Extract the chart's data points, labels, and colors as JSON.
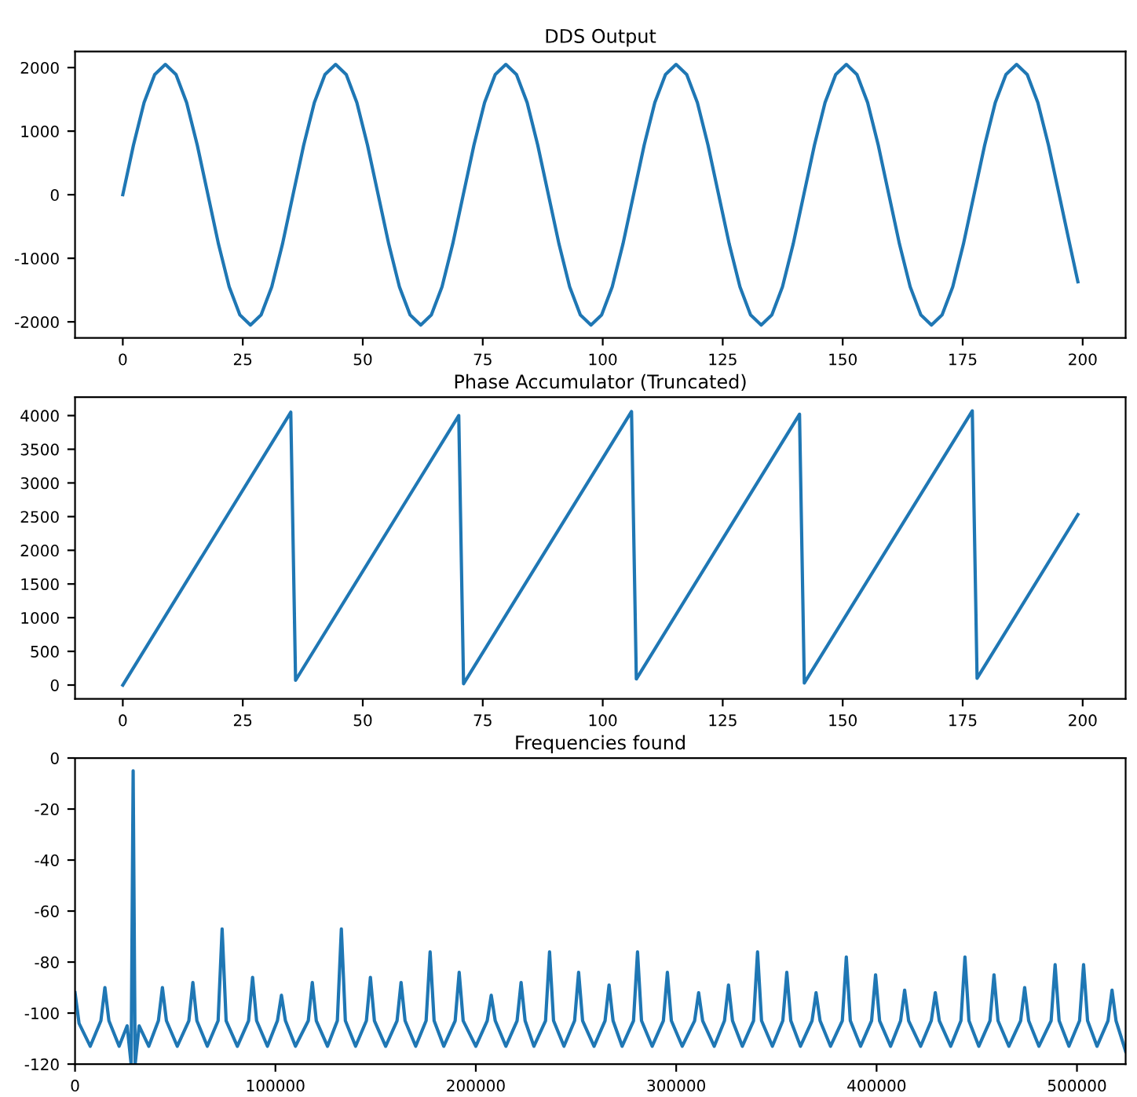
{
  "chart_data": [
    {
      "type": "line",
      "title": "DDS Output",
      "xlim": [
        -9.95,
        208.95
      ],
      "ylim": [
        -2252,
        2252
      ],
      "xticks": [
        0,
        25,
        50,
        75,
        100,
        125,
        150,
        175,
        200
      ],
      "yticks": [
        -2000,
        -1000,
        0,
        1000,
        2000
      ],
      "grid": false,
      "series": [
        {
          "color": "#1f77b4",
          "x": [
            0,
            2.22,
            4.43,
            6.65,
            8.87,
            11.09,
            13.3,
            15.52,
            17.74,
            19.95,
            22.17,
            24.39,
            26.6,
            28.82,
            31.04,
            33.26,
            35.47,
            37.69,
            39.91,
            42.12,
            44.34,
            46.56,
            48.77,
            50.99,
            53.21,
            55.43,
            57.64,
            59.86,
            62.08,
            64.29,
            66.51,
            68.73,
            70.94,
            73.16,
            75.38,
            77.6,
            79.81,
            82.03,
            84.25,
            86.46,
            88.68,
            90.9,
            93.11,
            95.33,
            97.55,
            99.77,
            101.98,
            104.2,
            106.42,
            108.63,
            110.85,
            113.07,
            115.28,
            117.5,
            119.72,
            121.94,
            124.15,
            126.37,
            128.59,
            130.8,
            133.02,
            135.24,
            137.45,
            139.67,
            141.89,
            144.11,
            146.32,
            148.54,
            150.76,
            152.97,
            155.19,
            157.41,
            159.62,
            161.84,
            164.06,
            166.28,
            168.49,
            170.71,
            172.93,
            175.14,
            177.36,
            179.58,
            181.79,
            184.01,
            186.23,
            188.45,
            190.66,
            192.88,
            195.1,
            197.31,
            199
          ],
          "values": [
            0,
            780,
            1450,
            1890,
            2050,
            1890,
            1450,
            780,
            0,
            -780,
            -1450,
            -1890,
            -2050,
            -1890,
            -1450,
            -780,
            0,
            780,
            1450,
            1890,
            2050,
            1890,
            1450,
            780,
            0,
            -780,
            -1450,
            -1890,
            -2050,
            -1890,
            -1450,
            -780,
            0,
            780,
            1450,
            1890,
            2050,
            1890,
            1450,
            780,
            0,
            -780,
            -1450,
            -1890,
            -2050,
            -1890,
            -1450,
            -780,
            0,
            780,
            1450,
            1890,
            2050,
            1890,
            1450,
            780,
            0,
            -780,
            -1450,
            -1890,
            -2050,
            -1890,
            -1450,
            -780,
            0,
            780,
            1450,
            1890,
            2050,
            1890,
            1450,
            780,
            0,
            -780,
            -1450,
            -1890,
            -2050,
            -1890,
            -1450,
            -780,
            0,
            780,
            1450,
            1890,
            2050,
            1890,
            1450,
            780,
            0,
            -780,
            -1370
          ]
        }
      ]
    },
    {
      "type": "line",
      "title": "Phase Accumulator (Truncated)",
      "xlim": [
        -9.95,
        208.95
      ],
      "ylim": [
        -204,
        4274
      ],
      "xticks": [
        0,
        25,
        50,
        75,
        100,
        125,
        150,
        175,
        200
      ],
      "yticks": [
        0,
        500,
        1000,
        1500,
        2000,
        2500,
        3000,
        3500,
        4000
      ],
      "grid": false,
      "series": [
        {
          "color": "#1f77b4",
          "x": [
            0,
            35,
            36,
            70,
            71,
            106,
            107,
            141,
            142,
            177,
            178,
            199
          ],
          "values": [
            0,
            4050,
            70,
            4000,
            20,
            4060,
            90,
            4020,
            30,
            4070,
            100,
            2530
          ]
        }
      ]
    },
    {
      "type": "line",
      "title": "Frequencies found",
      "xlim": [
        0,
        524288
      ],
      "ylim": [
        -120,
        0
      ],
      "xticks": [
        0,
        100000,
        200000,
        300000,
        400000,
        500000
      ],
      "yticks": [
        -120,
        -100,
        -80,
        -60,
        -40,
        -20,
        0
      ],
      "grid": false,
      "series": [
        {
          "color": "#1f77b4",
          "x": [
            0,
            2000,
            7600,
            12900,
            14900,
            16900,
            22000,
            26000,
            28000,
            29000,
            30000,
            32000,
            36800,
            41600,
            43600,
            45600,
            51000,
            56800,
            58800,
            60800,
            66000,
            71400,
            73400,
            75400,
            81000,
            86600,
            88600,
            90600,
            96000,
            101000,
            103000,
            105000,
            110000,
            116400,
            118400,
            120400,
            126000,
            130900,
            132900,
            134900,
            140000,
            145400,
            147400,
            149400,
            155000,
            160700,
            162700,
            164700,
            170000,
            175200,
            177200,
            179200,
            184000,
            189700,
            191700,
            193700,
            200000,
            205700,
            207700,
            209700,
            215000,
            220600,
            222600,
            224600,
            229000,
            234800,
            236800,
            238800,
            244000,
            249300,
            251300,
            253300,
            259000,
            264500,
            266500,
            268500,
            273000,
            278700,
            280700,
            282700,
            288000,
            293600,
            295600,
            297600,
            303000,
            309200,
            311200,
            313200,
            319000,
            324100,
            326100,
            328100,
            333000,
            338600,
            340600,
            342600,
            348000,
            353200,
            355200,
            357200,
            362000,
            367800,
            369800,
            371800,
            377000,
            382900,
            384900,
            386900,
            392000,
            397500,
            399500,
            401500,
            407000,
            412000,
            414000,
            416000,
            422000,
            427300,
            429300,
            431300,
            437000,
            442100,
            444100,
            446100,
            451000,
            456600,
            458600,
            460600,
            466000,
            471900,
            473900,
            475900,
            481000,
            487100,
            489100,
            491100,
            496000,
            501300,
            503300,
            505300,
            510000,
            515500,
            517500,
            519500,
            524288
          ],
          "values": [
            -92,
            -104,
            -113,
            -103,
            -90,
            -103,
            -113,
            -105,
            -120,
            -5,
            -120,
            -105,
            -113,
            -103,
            -90,
            -103,
            -113,
            -103,
            -88,
            -103,
            -113,
            -103,
            -67,
            -103,
            -113,
            -103,
            -86,
            -103,
            -113,
            -103,
            -93,
            -103,
            -113,
            -103,
            -88,
            -103,
            -113,
            -103,
            -67,
            -103,
            -113,
            -103,
            -86,
            -103,
            -113,
            -103,
            -88,
            -103,
            -113,
            -103,
            -76,
            -103,
            -113,
            -103,
            -84,
            -103,
            -113,
            -103,
            -93,
            -103,
            -113,
            -103,
            -88,
            -103,
            -113,
            -103,
            -76,
            -103,
            -113,
            -103,
            -84,
            -103,
            -113,
            -103,
            -89,
            -103,
            -113,
            -103,
            -76,
            -103,
            -113,
            -103,
            -84,
            -103,
            -113,
            -103,
            -92,
            -103,
            -113,
            -103,
            -89,
            -103,
            -113,
            -103,
            -76,
            -103,
            -113,
            -103,
            -84,
            -103,
            -113,
            -103,
            -92,
            -103,
            -113,
            -103,
            -78,
            -103,
            -113,
            -103,
            -85,
            -103,
            -113,
            -103,
            -91,
            -103,
            -113,
            -103,
            -92,
            -103,
            -113,
            -103,
            -78,
            -103,
            -113,
            -103,
            -85,
            -103,
            -113,
            -103,
            -90,
            -103,
            -113,
            -103,
            -81,
            -103,
            -113,
            -103,
            -81,
            -103,
            -113,
            -103,
            -91,
            -103,
            -115
          ]
        }
      ]
    }
  ]
}
